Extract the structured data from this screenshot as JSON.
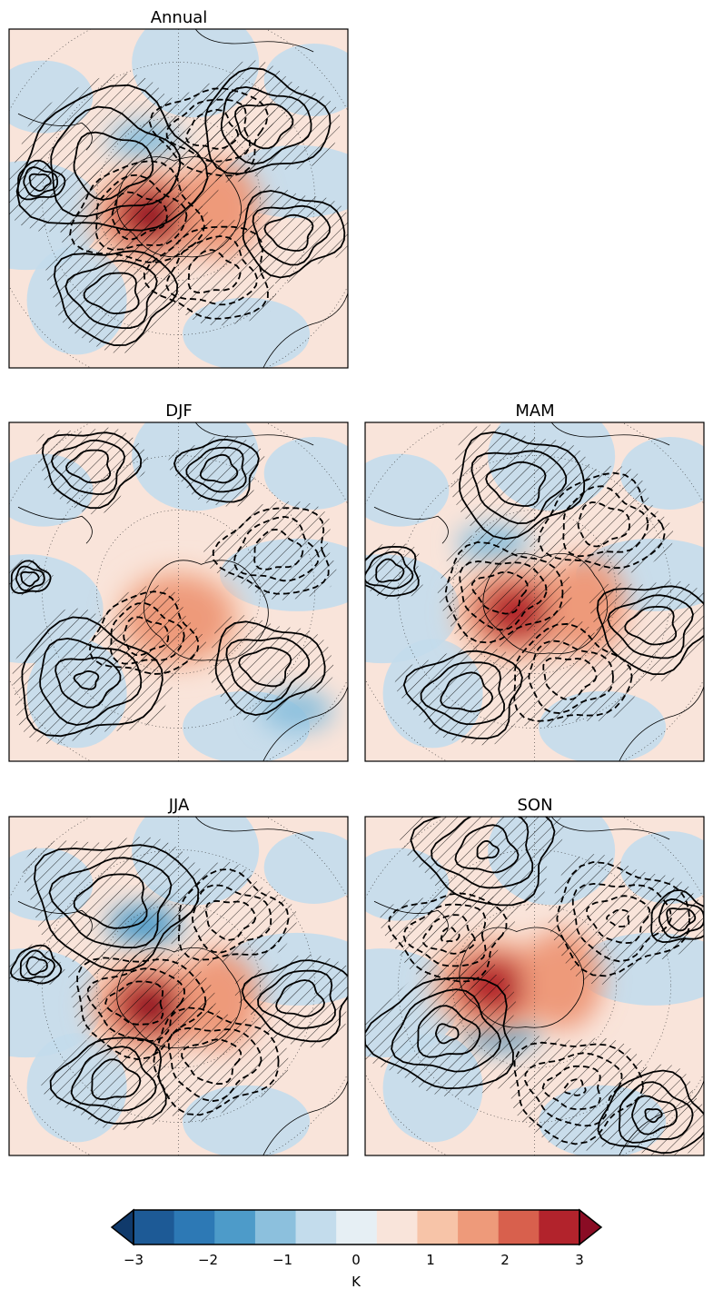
{
  "chart_data": {
    "type": "heatmap",
    "description_panels": "Polar stereographic maps of the Southern Hemisphere around Antarctica showing a temperature anomaly field (filled colours) with overlaid contour lines (solid positive, dashed negative) and hatching for significance.",
    "panels": [
      {
        "title": "Annual",
        "warm_center": [
          0.42,
          0.55
        ],
        "warm_max": 3,
        "cool_center": [
          0.4,
          0.33
        ],
        "cool_min": -1,
        "contours": [
          [
            0.3,
            0.4,
            0.23,
            1
          ],
          [
            0.75,
            0.28,
            0.16,
            1
          ],
          [
            0.83,
            0.6,
            0.13,
            1
          ],
          [
            0.31,
            0.78,
            0.15,
            1
          ],
          [
            0.6,
            0.3,
            0.14,
            -1
          ],
          [
            0.6,
            0.72,
            0.15,
            -1
          ],
          [
            0.38,
            0.55,
            0.16,
            -1
          ],
          [
            0.09,
            0.45,
            0.06,
            1
          ]
        ]
      },
      {
        "title": "DJF",
        "warm_center": [
          0.5,
          0.58
        ],
        "warm_max": 1.5,
        "cool_center": [
          0.85,
          0.85
        ],
        "cool_min": -1,
        "contours": [
          [
            0.23,
            0.76,
            0.18,
            1
          ],
          [
            0.76,
            0.72,
            0.14,
            1
          ],
          [
            0.24,
            0.13,
            0.12,
            1
          ],
          [
            0.62,
            0.14,
            0.1,
            1
          ],
          [
            0.79,
            0.38,
            0.14,
            -1
          ],
          [
            0.4,
            0.63,
            0.13,
            -1
          ],
          [
            0.06,
            0.46,
            0.05,
            1
          ]
        ]
      },
      {
        "title": "MAM",
        "warm_center": [
          0.45,
          0.56
        ],
        "warm_max": 2.5,
        "cool_center": [
          0.38,
          0.36
        ],
        "cool_min": -1,
        "contours": [
          [
            0.45,
            0.18,
            0.16,
            1
          ],
          [
            0.85,
            0.6,
            0.14,
            1
          ],
          [
            0.3,
            0.8,
            0.14,
            1
          ],
          [
            0.07,
            0.44,
            0.08,
            1
          ],
          [
            0.7,
            0.3,
            0.15,
            -1
          ],
          [
            0.6,
            0.75,
            0.15,
            -1
          ],
          [
            0.4,
            0.5,
            0.15,
            -1
          ]
        ]
      },
      {
        "title": "JJA",
        "warm_center": [
          0.42,
          0.56
        ],
        "warm_max": 3,
        "cool_center": [
          0.4,
          0.32
        ],
        "cool_min": -1.5,
        "contours": [
          [
            0.31,
            0.25,
            0.2,
            1
          ],
          [
            0.86,
            0.54,
            0.13,
            1
          ],
          [
            0.31,
            0.78,
            0.14,
            1
          ],
          [
            0.08,
            0.44,
            0.06,
            1
          ],
          [
            0.65,
            0.3,
            0.14,
            -1
          ],
          [
            0.6,
            0.72,
            0.16,
            -1
          ],
          [
            0.38,
            0.55,
            0.16,
            -1
          ]
        ]
      },
      {
        "title": "SON",
        "warm_center": [
          0.38,
          0.5
        ],
        "warm_max": 2.5,
        "cool_center": [
          0.4,
          0.63
        ],
        "cool_min": -1.5,
        "contours": [
          [
            0.36,
            0.1,
            0.17,
            1
          ],
          [
            0.24,
            0.64,
            0.18,
            1
          ],
          [
            0.85,
            0.88,
            0.13,
            1
          ],
          [
            0.93,
            0.3,
            0.08,
            1
          ],
          [
            0.75,
            0.3,
            0.17,
            -1
          ],
          [
            0.62,
            0.8,
            0.16,
            -1
          ],
          [
            0.25,
            0.35,
            0.14,
            -1
          ]
        ]
      }
    ],
    "colorbar": {
      "label": "K",
      "ticks": [
        "−3",
        "−2",
        "−1",
        "0",
        "1",
        "2",
        "3"
      ],
      "vmin": -3,
      "vmax": 3,
      "step": 0.5,
      "extend": "both",
      "colors": [
        "#103a6b",
        "#1d5a96",
        "#2d79b5",
        "#4d9bc9",
        "#8cc0dd",
        "#c3dcec",
        "#e6eff4",
        "#f9e4da",
        "#f7c4a8",
        "#ee9a7a",
        "#d8604d",
        "#b2232c",
        "#8a0c24"
      ]
    }
  }
}
